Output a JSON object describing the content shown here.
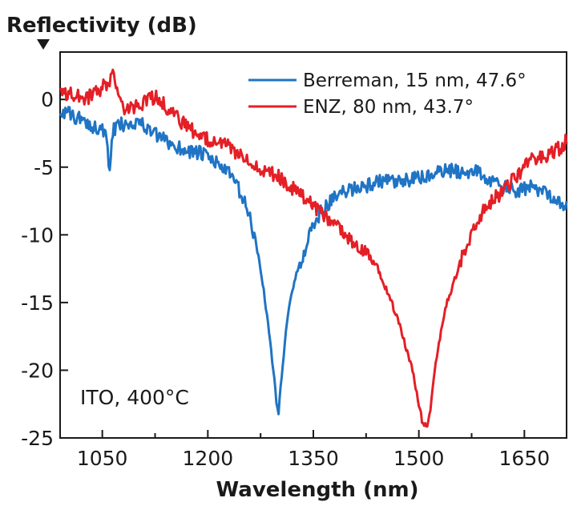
{
  "chart_data": {
    "type": "line",
    "title": "",
    "ylabel": "Reflectivity (dB)",
    "xlabel": "Wavelength (nm)",
    "xlim": [
      990,
      1710
    ],
    "ylim": [
      -25,
      3.5
    ],
    "xticks": [
      1050,
      1200,
      1350,
      1500,
      1650
    ],
    "yticks": [
      0,
      -5,
      -10,
      -15,
      -20,
      -25
    ],
    "xtick_labels": [
      "1050",
      "1200",
      "1350",
      "1500",
      "1650"
    ],
    "ytick_labels": [
      "0",
      "-5",
      "-10",
      "-15",
      "-20",
      "-25"
    ],
    "legend_position": "top-right",
    "annotation": "ITO, 400°C",
    "series": [
      {
        "name": "Berreman, 15 nm, 47.6°",
        "color": "#1f74c4",
        "x": [
          990,
          1020,
          1050,
          1055,
          1060,
          1065,
          1070,
          1080,
          1100,
          1130,
          1160,
          1190,
          1210,
          1225,
          1240,
          1255,
          1265,
          1275,
          1283,
          1290,
          1296,
          1300,
          1305,
          1310,
          1320,
          1335,
          1350,
          1365,
          1380,
          1395,
          1410,
          1430,
          1450,
          1470,
          1490,
          1500,
          1520,
          1540,
          1560,
          1580,
          1600,
          1620,
          1640,
          1660,
          1680,
          1700,
          1710
        ],
        "y": [
          -0.8,
          -1.5,
          -2.3,
          -2.6,
          -5.5,
          -2.4,
          -2.0,
          -1.8,
          -1.6,
          -2.8,
          -3.6,
          -4.0,
          -4.6,
          -5.2,
          -6.2,
          -8.0,
          -9.8,
          -12.5,
          -15.5,
          -18.5,
          -21.5,
          -23.3,
          -20.5,
          -17.5,
          -14.0,
          -11.5,
          -9.2,
          -8.0,
          -7.3,
          -6.8,
          -6.5,
          -6.3,
          -6.0,
          -6.2,
          -5.9,
          -5.8,
          -5.6,
          -5.2,
          -5.4,
          -5.2,
          -6.0,
          -6.5,
          -6.8,
          -6.5,
          -6.8,
          -7.5,
          -8.0
        ]
      },
      {
        "name": "ENZ, 80 nm, 43.7°",
        "color": "#e41f26",
        "x": [
          990,
          1010,
          1030,
          1050,
          1060,
          1065,
          1070,
          1080,
          1100,
          1120,
          1130,
          1140,
          1160,
          1180,
          1200,
          1220,
          1240,
          1260,
          1280,
          1300,
          1320,
          1340,
          1360,
          1380,
          1400,
          1420,
          1440,
          1450,
          1460,
          1470,
          1480,
          1490,
          1500,
          1505,
          1510,
          1515,
          1520,
          1530,
          1540,
          1550,
          1560,
          1580,
          1600,
          1620,
          1640,
          1660,
          1680,
          1700,
          1710
        ],
        "y": [
          0.5,
          0.3,
          0.1,
          0.9,
          1.2,
          2.3,
          0.5,
          -0.8,
          -0.5,
          0.1,
          0.2,
          -0.5,
          -1.6,
          -2.4,
          -2.9,
          -3.2,
          -3.9,
          -4.5,
          -5.2,
          -5.7,
          -6.6,
          -7.3,
          -8.3,
          -9.3,
          -10.3,
          -11.2,
          -12.2,
          -13.6,
          -14.8,
          -16.3,
          -18.0,
          -19.8,
          -22.5,
          -23.8,
          -24.2,
          -23.5,
          -21.0,
          -17.5,
          -15.0,
          -13.5,
          -11.8,
          -9.2,
          -7.6,
          -6.8,
          -5.6,
          -4.5,
          -4.2,
          -3.6,
          -3.0
        ]
      }
    ]
  }
}
